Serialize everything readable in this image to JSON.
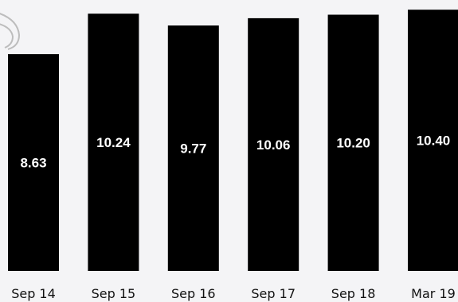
{
  "chart_data": {
    "type": "bar",
    "categories": [
      "Sep 14",
      "Sep 15",
      "Sep 16",
      "Sep 17",
      "Sep 18",
      "Mar 19"
    ],
    "values": [
      8.63,
      10.24,
      9.77,
      10.06,
      10.2,
      10.4
    ],
    "value_labels": [
      "8.63",
      "10.24",
      "9.77",
      "10.06",
      "10.20",
      "10.40"
    ],
    "ylim": [
      0,
      10.5
    ],
    "grid": false,
    "colors": {
      "bar": "#000000",
      "value_label": "#ffffff",
      "background": "#f4f4f6",
      "decoration": "#bdbdbd"
    }
  }
}
